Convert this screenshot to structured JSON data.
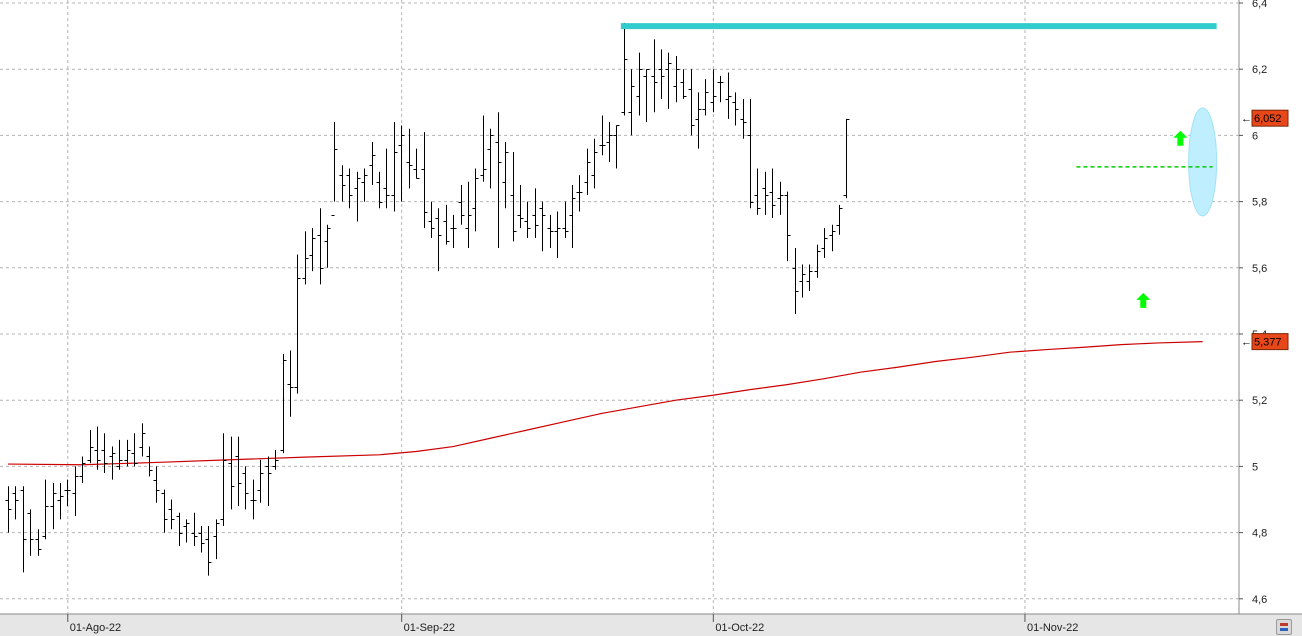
{
  "chart_data": {
    "type": "ohlc",
    "title": "",
    "xlabel": "",
    "ylabel": "",
    "ylim": [
      4.55,
      6.4
    ],
    "y_ticks": [
      {
        "value": 6.4,
        "label": "6,4"
      },
      {
        "value": 6.2,
        "label": "6,2"
      },
      {
        "value": 6.0,
        "label": "6"
      },
      {
        "value": 5.8,
        "label": "5,8"
      },
      {
        "value": 5.6,
        "label": "5,6"
      },
      {
        "value": 5.4,
        "label": "5,4"
      },
      {
        "value": 5.2,
        "label": "5,2"
      },
      {
        "value": 5.0,
        "label": "5"
      },
      {
        "value": 4.8,
        "label": "4,8"
      },
      {
        "value": 4.6,
        "label": "4,6"
      }
    ],
    "x_ticks": [
      {
        "index": 9,
        "label": "01-Ago-22"
      },
      {
        "index": 54,
        "label": "01-Sep-22"
      },
      {
        "index": 96,
        "label": "01-Oct-22"
      },
      {
        "index": 138,
        "label": "01-Nov-22"
      }
    ],
    "grid": true,
    "series": [
      {
        "name": "",
        "kind": "ohlc_bars",
        "color": "#000000",
        "bars": [
          [
            4.9,
            4.94,
            4.8,
            4.87
          ],
          [
            4.92,
            4.94,
            4.84,
            4.9
          ],
          [
            4.93,
            4.94,
            4.68,
            4.78
          ],
          [
            4.86,
            4.87,
            4.73,
            4.78
          ],
          [
            4.78,
            4.81,
            4.73,
            4.75
          ],
          [
            4.79,
            4.96,
            4.78,
            4.88
          ],
          [
            4.88,
            4.95,
            4.81,
            4.92
          ],
          [
            4.9,
            4.95,
            4.84,
            4.91
          ],
          [
            4.93,
            4.96,
            4.88,
            4.93
          ],
          [
            4.92,
            5.0,
            4.85,
            4.97
          ],
          [
            4.97,
            5.03,
            4.95,
            5.01
          ],
          [
            5.02,
            5.11,
            5.01,
            5.06
          ],
          [
            5.05,
            5.12,
            4.99,
            5.02
          ],
          [
            5.05,
            5.1,
            4.98,
            5.01
          ],
          [
            5.03,
            5.06,
            4.96,
            5.04
          ],
          [
            5.0,
            5.08,
            4.99,
            5.02
          ],
          [
            5.02,
            5.08,
            5.0,
            5.05
          ],
          [
            5.04,
            5.1,
            5.0,
            5.01
          ],
          [
            5.06,
            5.13,
            5.03,
            5.1
          ],
          [
            5.03,
            5.06,
            4.97,
            4.99
          ],
          [
            4.96,
            5.0,
            4.89,
            4.93
          ],
          [
            4.92,
            4.93,
            4.8,
            4.84
          ],
          [
            4.87,
            4.9,
            4.81,
            4.84
          ],
          [
            4.85,
            4.86,
            4.76,
            4.8
          ],
          [
            4.82,
            4.84,
            4.77,
            4.83
          ],
          [
            4.8,
            4.86,
            4.76,
            4.79
          ],
          [
            4.8,
            4.82,
            4.74,
            4.77
          ],
          [
            4.78,
            4.82,
            4.67,
            4.71
          ],
          [
            4.79,
            4.84,
            4.72,
            4.83
          ],
          [
            4.84,
            5.1,
            4.82,
            5.02
          ],
          [
            5.01,
            5.09,
            4.87,
            4.94
          ],
          [
            5.03,
            5.09,
            4.88,
            4.95
          ],
          [
            4.98,
            5.0,
            4.87,
            4.92
          ],
          [
            4.9,
            4.96,
            4.84,
            4.9
          ],
          [
            4.93,
            5.02,
            4.89,
            4.98
          ],
          [
            5.0,
            5.03,
            4.88,
            4.98
          ],
          [
            5.0,
            5.05,
            4.99,
            5.02
          ],
          [
            5.05,
            5.34,
            5.04,
            5.32
          ],
          [
            5.25,
            5.35,
            5.15,
            5.24
          ],
          [
            5.24,
            5.64,
            5.22,
            5.57
          ],
          [
            5.57,
            5.71,
            5.55,
            5.63
          ],
          [
            5.64,
            5.72,
            5.59,
            5.69
          ],
          [
            5.7,
            5.78,
            5.55,
            5.6
          ],
          [
            5.68,
            5.73,
            5.6,
            5.72
          ],
          [
            5.76,
            6.04,
            5.8,
            5.96
          ],
          [
            5.88,
            5.91,
            5.8,
            5.85
          ],
          [
            5.88,
            5.9,
            5.78,
            5.82
          ],
          [
            5.84,
            5.89,
            5.74,
            5.87
          ],
          [
            5.86,
            5.9,
            5.8,
            5.88
          ],
          [
            5.91,
            5.98,
            5.85,
            5.94
          ],
          [
            5.86,
            5.89,
            5.78,
            5.8
          ],
          [
            5.84,
            5.96,
            5.78,
            5.82
          ],
          [
            5.82,
            6.04,
            5.77,
            5.95
          ],
          [
            5.97,
            6.03,
            5.8,
            6.0
          ],
          [
            5.92,
            6.02,
            5.84,
            5.91
          ],
          [
            5.9,
            5.96,
            5.87,
            5.87
          ],
          [
            5.9,
            6.01,
            5.72,
            5.77
          ],
          [
            5.74,
            5.8,
            5.69,
            5.72
          ],
          [
            5.75,
            5.78,
            5.59,
            5.7
          ],
          [
            5.74,
            5.79,
            5.67,
            5.68
          ],
          [
            5.72,
            5.76,
            5.66,
            5.72
          ],
          [
            5.8,
            5.85,
            5.73,
            5.76
          ],
          [
            5.72,
            5.86,
            5.66,
            5.76
          ],
          [
            5.78,
            5.9,
            5.71,
            5.87
          ],
          [
            5.88,
            6.06,
            5.86,
            5.9
          ],
          [
            5.96,
            6.02,
            5.84,
            6.0
          ],
          [
            5.98,
            6.07,
            5.66,
            5.92
          ],
          [
            5.86,
            5.98,
            5.78,
            5.95
          ],
          [
            5.82,
            5.95,
            5.68,
            5.71
          ],
          [
            5.76,
            5.85,
            5.72,
            5.75
          ],
          [
            5.74,
            5.8,
            5.69,
            5.72
          ],
          [
            5.76,
            5.84,
            5.69,
            5.73
          ],
          [
            5.78,
            5.8,
            5.65,
            5.76
          ],
          [
            5.72,
            5.76,
            5.66,
            5.71
          ],
          [
            5.71,
            5.77,
            5.63,
            5.72
          ],
          [
            5.72,
            5.8,
            5.69,
            5.71
          ],
          [
            5.76,
            5.85,
            5.66,
            5.81
          ],
          [
            5.83,
            5.88,
            5.77,
            5.83
          ],
          [
            5.86,
            5.96,
            5.82,
            5.92
          ],
          [
            5.88,
            5.99,
            5.84,
            5.95
          ],
          [
            5.97,
            6.06,
            5.94,
            5.97
          ],
          [
            5.98,
            6.04,
            5.92,
            6.0
          ],
          [
            6.0,
            6.03,
            5.9,
            6.03
          ],
          [
            6.07,
            6.34,
            6.06,
            6.23
          ],
          [
            6.07,
            6.2,
            6.0,
            6.15
          ],
          [
            6.12,
            6.25,
            6.06,
            6.2
          ],
          [
            6.18,
            6.2,
            6.04,
            6.2
          ],
          [
            6.18,
            6.29,
            6.07,
            6.16
          ],
          [
            6.2,
            6.26,
            6.11,
            6.18
          ],
          [
            6.2,
            6.25,
            6.08,
            6.22
          ],
          [
            6.15,
            6.24,
            6.1,
            6.2
          ],
          [
            6.16,
            6.2,
            6.11,
            6.12
          ],
          [
            6.14,
            6.2,
            6.0,
            6.03
          ],
          [
            6.05,
            6.13,
            5.96,
            6.08
          ],
          [
            6.08,
            6.17,
            6.06,
            6.13
          ],
          [
            6.1,
            6.2,
            6.07,
            6.12
          ],
          [
            6.16,
            6.18,
            6.1,
            6.16
          ],
          [
            6.11,
            6.19,
            6.05,
            6.12
          ],
          [
            6.1,
            6.13,
            6.03,
            6.08
          ],
          [
            6.05,
            6.11,
            5.99,
            6.04
          ],
          [
            6.0,
            6.11,
            5.78,
            5.8
          ],
          [
            5.82,
            5.9,
            5.76,
            5.78
          ],
          [
            5.84,
            5.89,
            5.76,
            5.82
          ],
          [
            5.83,
            5.9,
            5.75,
            5.79
          ],
          [
            5.81,
            5.86,
            5.76,
            5.82
          ],
          [
            5.82,
            5.83,
            5.62,
            5.7
          ],
          [
            5.6,
            5.66,
            5.46,
            5.53
          ],
          [
            5.56,
            5.61,
            5.51,
            5.58
          ],
          [
            5.56,
            5.61,
            5.53,
            5.59
          ],
          [
            5.59,
            5.67,
            5.57,
            5.65
          ],
          [
            5.66,
            5.72,
            5.63,
            5.69
          ],
          [
            5.7,
            5.73,
            5.65,
            5.71
          ],
          [
            5.73,
            5.79,
            5.7,
            5.78
          ],
          [
            5.82,
            6.05,
            5.81,
            6.05
          ]
        ]
      },
      {
        "name": "",
        "kind": "moving_average",
        "color": "#cc0000",
        "points": [
          [
            0,
            5.007
          ],
          [
            10,
            5.005
          ],
          [
            20,
            5.012
          ],
          [
            30,
            5.02
          ],
          [
            40,
            5.028
          ],
          [
            50,
            5.035
          ],
          [
            55,
            5.045
          ],
          [
            60,
            5.06
          ],
          [
            65,
            5.085
          ],
          [
            70,
            5.11
          ],
          [
            75,
            5.135
          ],
          [
            80,
            5.16
          ],
          [
            85,
            5.18
          ],
          [
            90,
            5.2
          ],
          [
            95,
            5.215
          ],
          [
            100,
            5.232
          ],
          [
            105,
            5.247
          ],
          [
            110,
            5.265
          ],
          [
            115,
            5.285
          ],
          [
            120,
            5.3
          ],
          [
            125,
            5.317
          ],
          [
            130,
            5.33
          ],
          [
            135,
            5.345
          ],
          [
            140,
            5.353
          ],
          [
            145,
            5.36
          ],
          [
            150,
            5.368
          ],
          [
            155,
            5.373
          ],
          [
            161,
            5.377
          ]
        ]
      }
    ],
    "annotations": {
      "resistance_line": {
        "value": 6.33,
        "from_index": 83,
        "to_index": 161,
        "color": "#33cccc"
      },
      "breakout_dashed_line": {
        "value": 5.905,
        "from_index": 144,
        "to_index": 161,
        "color": "#00cc00"
      },
      "up_arrows": [
        {
          "index": 153,
          "value": 5.5,
          "color": "#00ff00"
        },
        {
          "index": 158,
          "value": 5.99,
          "color": "#00ff00"
        }
      ],
      "highlight_ellipse": {
        "index": 161,
        "value_center": 5.92,
        "color": "#bfefff"
      }
    },
    "price_tags": [
      {
        "label": "6,052",
        "value": 6.052,
        "color": "#e8471a"
      },
      {
        "label": "5,377",
        "value": 5.377,
        "color": "#e8471a"
      }
    ]
  }
}
